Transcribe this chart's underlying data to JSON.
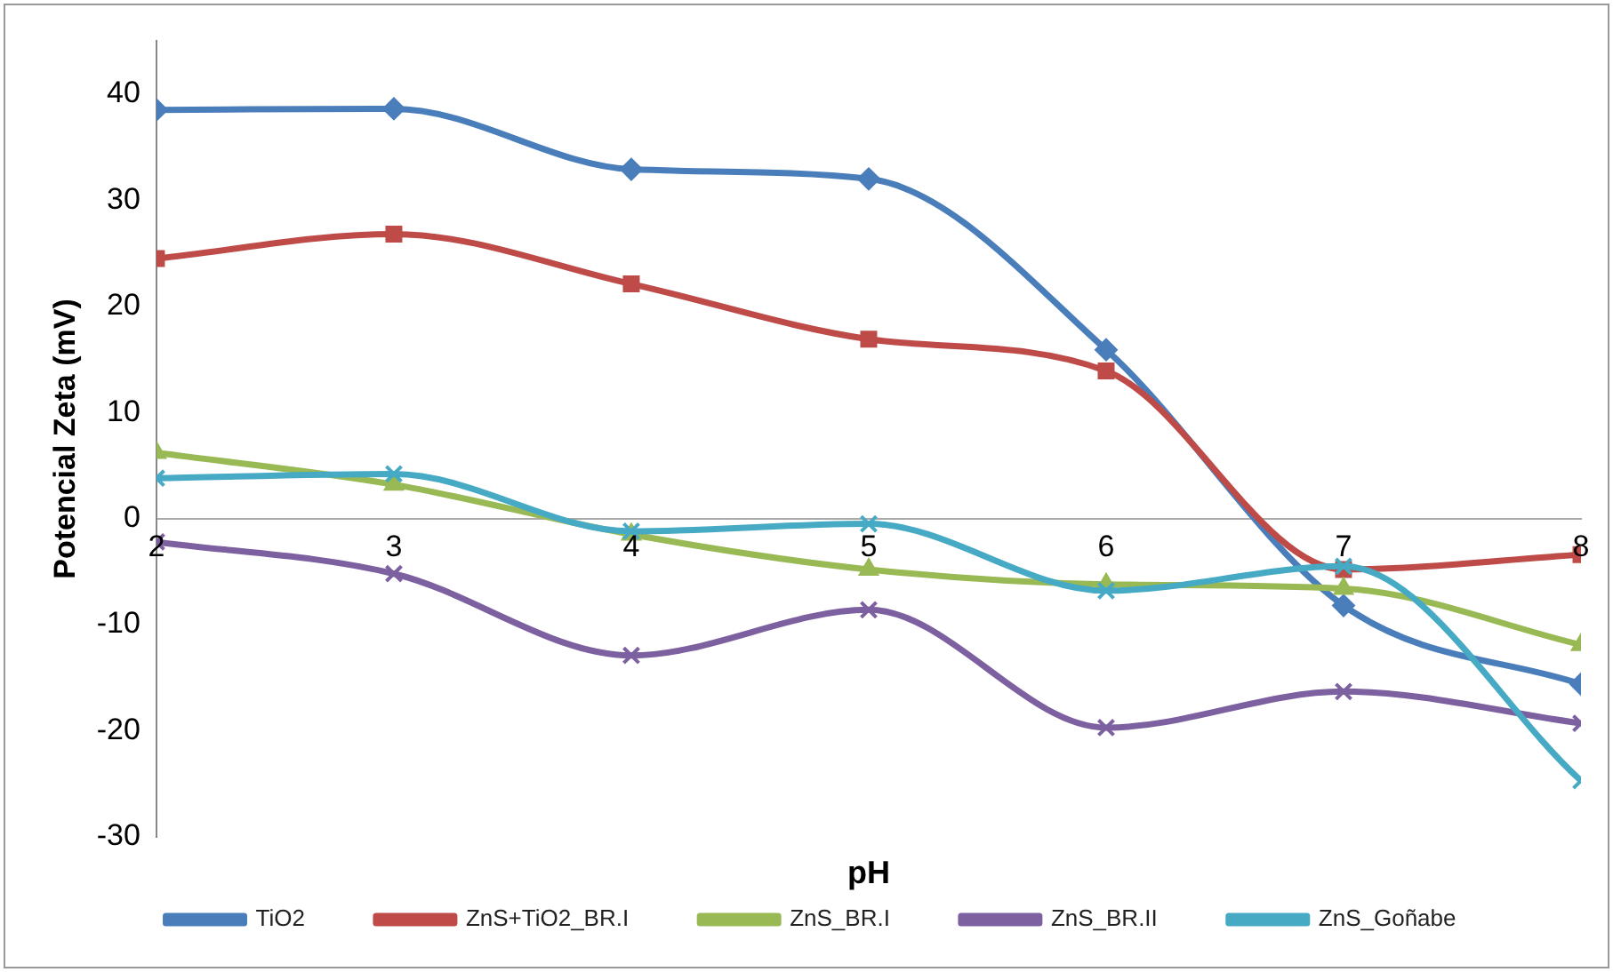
{
  "chart_data": {
    "type": "line",
    "xlabel": "pH",
    "ylabel": "Potencial Zeta (mV)",
    "x": [
      2,
      3,
      4,
      5,
      6,
      7,
      8
    ],
    "xlim": [
      2,
      8
    ],
    "xticks": [
      2,
      3,
      4,
      5,
      6,
      7,
      8
    ],
    "ylim": [
      -30,
      45
    ],
    "yticks": [
      -30,
      -20,
      -10,
      0,
      10,
      20,
      30,
      40
    ],
    "grid": false,
    "legend": "bottom",
    "line_style": "solid",
    "series": [
      {
        "name": "TiO2",
        "color": "#4a7ebb",
        "marker": "diamond",
        "values": [
          38.5,
          38.6,
          32.9,
          32,
          15.9,
          -8.2,
          -15.6
        ]
      },
      {
        "name": "ZnS+TiO2_BR.I",
        "color": "#be4b48",
        "marker": "square",
        "values": [
          24.5,
          26.8,
          22.1,
          16.9,
          13.9,
          -4.8,
          -3.4
        ]
      },
      {
        "name": "ZnS_BR.I",
        "color": "#98b954",
        "marker": "triangle",
        "values": [
          6.2,
          3.2,
          -1.5,
          -4.8,
          -6.2,
          -6.6,
          -11.9
        ]
      },
      {
        "name": "ZnS_BR.II",
        "color": "#7d60a0",
        "marker": "cross",
        "values": [
          -2.2,
          -5.2,
          -12.9,
          -8.6,
          -19.7,
          -16.3,
          -19.3
        ]
      },
      {
        "name": "ZnS_Goñabe",
        "color": "#46aac5",
        "marker": "cross",
        "values": [
          3.8,
          4.2,
          -1.2,
          -0.5,
          -6.8,
          -4.5,
          -24.7
        ]
      }
    ]
  }
}
